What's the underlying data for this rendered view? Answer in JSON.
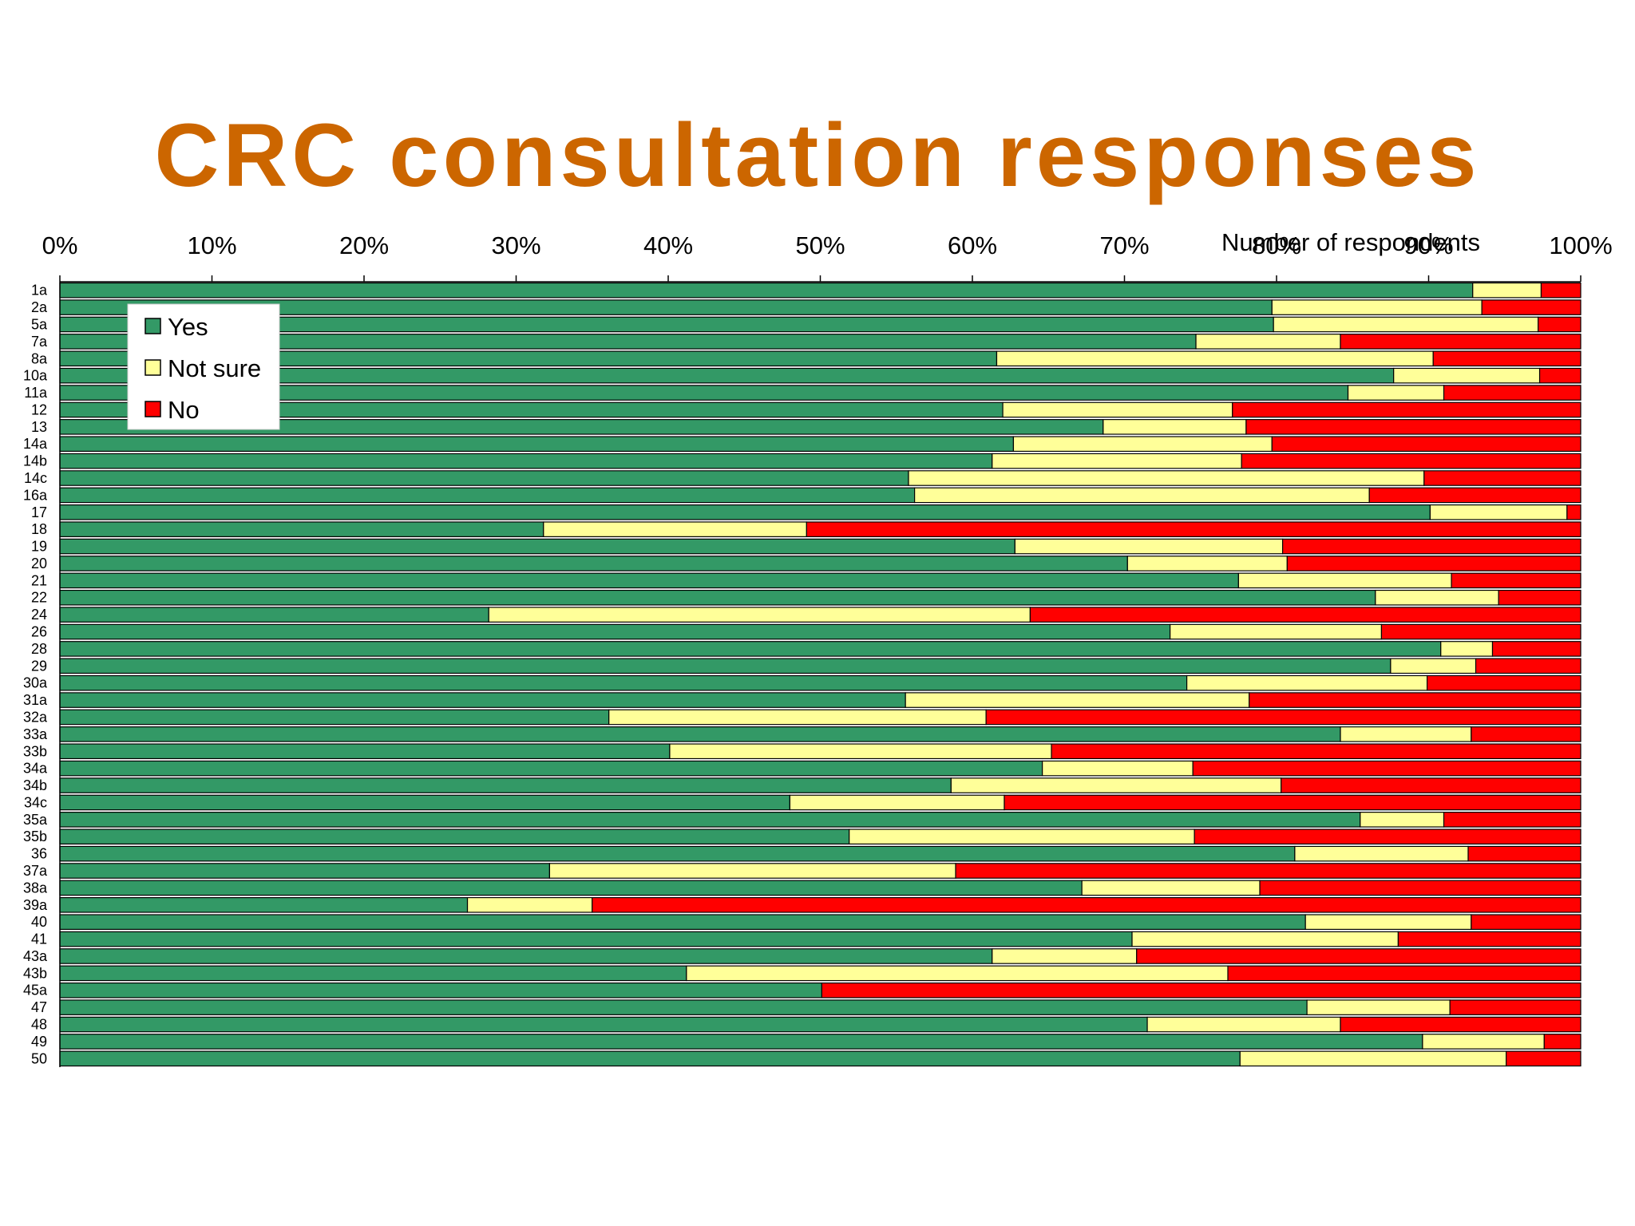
{
  "title": "CRC consultation responses",
  "chart_data": {
    "type": "bar",
    "orientation": "horizontal",
    "stacked": true,
    "percent_stacked": true,
    "title": "CRC consultation responses",
    "xlabel": "Number of respondents",
    "xlim": [
      0,
      100
    ],
    "x_ticks": [
      "0%",
      "10%",
      "20%",
      "30%",
      "40%",
      "50%",
      "60%",
      "70%",
      "80%",
      "90%",
      "100%"
    ],
    "grid": false,
    "legend_position": "top-left",
    "categories": [
      "1a",
      "2a",
      "5a",
      "7a",
      "8a",
      "10a",
      "11a",
      "12",
      "13",
      "14a",
      "14b",
      "14c",
      "16a",
      "17",
      "18",
      "19",
      "20",
      "21",
      "22",
      "24",
      "26",
      "28",
      "29",
      "30a",
      "31a",
      "32a",
      "33a",
      "33b",
      "34a",
      "34b",
      "34c",
      "35a",
      "35b",
      "36",
      "37a",
      "38a",
      "39a",
      "40",
      "41",
      "43a",
      "43b",
      "45a",
      "47",
      "48",
      "49",
      "50"
    ],
    "series": [
      {
        "name": "Yes",
        "color": "#339966",
        "values": [
          92.9,
          79.7,
          79.8,
          74.7,
          61.6,
          87.7,
          84.7,
          62.0,
          68.6,
          62.7,
          61.3,
          55.8,
          56.2,
          90.1,
          31.8,
          62.8,
          70.2,
          77.5,
          86.5,
          28.2,
          73.0,
          90.8,
          87.5,
          74.1,
          55.6,
          36.1,
          84.2,
          40.1,
          64.6,
          58.6,
          48.0,
          85.5,
          51.9,
          81.2,
          32.2,
          67.2,
          26.8,
          81.9,
          70.5,
          61.3,
          41.2,
          50.1,
          82.0,
          71.5,
          89.6,
          77.6
        ]
      },
      {
        "name": "Not sure",
        "color": "#ffff99",
        "values": [
          4.5,
          13.8,
          17.4,
          9.5,
          28.7,
          9.6,
          6.3,
          15.1,
          9.4,
          17.0,
          16.4,
          33.9,
          29.9,
          9.0,
          17.3,
          17.6,
          10.5,
          14.0,
          8.1,
          35.6,
          13.9,
          3.4,
          5.6,
          15.8,
          22.6,
          24.8,
          8.6,
          25.1,
          9.9,
          21.7,
          14.1,
          5.5,
          22.7,
          11.4,
          26.7,
          11.7,
          8.2,
          10.9,
          17.5,
          9.5,
          35.6,
          0.0,
          9.4,
          12.7,
          8.0,
          17.5
        ]
      },
      {
        "name": "No",
        "color": "#ff0000",
        "values": [
          2.6,
          6.5,
          2.8,
          15.8,
          9.7,
          2.7,
          9.0,
          22.9,
          22.0,
          20.3,
          22.3,
          10.3,
          13.9,
          0.9,
          50.9,
          19.6,
          19.3,
          8.5,
          5.4,
          36.2,
          13.1,
          5.8,
          6.9,
          10.1,
          21.8,
          39.1,
          7.2,
          34.8,
          25.5,
          19.7,
          37.9,
          9.0,
          25.4,
          7.4,
          41.1,
          21.1,
          65.0,
          7.2,
          12.0,
          29.2,
          23.2,
          49.9,
          8.6,
          15.8,
          2.4,
          4.9
        ]
      }
    ]
  }
}
